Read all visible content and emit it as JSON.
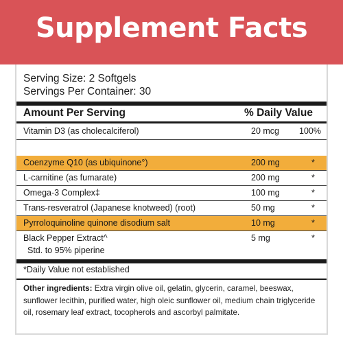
{
  "title": "Supplement Facts",
  "serving_size": "Serving Size: 2 Softgels",
  "servings_per_container": "Servings Per Container: 30",
  "header": {
    "amount": "Amount Per Serving",
    "daily_value": "% Daily Value"
  },
  "rows": [
    {
      "name": "Vitamin D3 (as cholecalciferol)",
      "amount": "20 mcg",
      "dv": "100%",
      "highlight": false
    },
    {
      "name": "Coenzyme Q10  (as ubiquinone°)",
      "amount": "200 mg",
      "dv": "*",
      "highlight": true
    },
    {
      "name": "L-carnitine (as fumarate)",
      "amount": "200 mg",
      "dv": "*",
      "highlight": false
    },
    {
      "name": "Omega-3 Complex‡",
      "amount": "100 mg",
      "dv": "*",
      "highlight": false
    },
    {
      "name": "Trans-resveratrol (Japanese knotweed) (root)",
      "amount": "50 mg",
      "dv": "*",
      "highlight": false
    },
    {
      "name": "Pyrroloquinoline quinone disodium salt",
      "amount": "10 mg",
      "dv": "*",
      "highlight": true
    },
    {
      "name": "Black Pepper Extract^",
      "sub": "Std. to 95% piperine",
      "amount": "5 mg",
      "dv": "*",
      "highlight": false
    }
  ],
  "footnote": "*Daily Value not established",
  "other_ingredients": {
    "label": "Other ingredients:",
    "text": " Extra virgin olive oil, gelatin, glycerin, caramel, beeswax, sunflower lecithin, purified water, high oleic sunflower oil, medium chain triglyceride oil, rosemary leaf extract, tocopherols and ascorbyl palmitate."
  },
  "colors": {
    "banner": "#d95357",
    "highlight": "#f2ad3b"
  }
}
